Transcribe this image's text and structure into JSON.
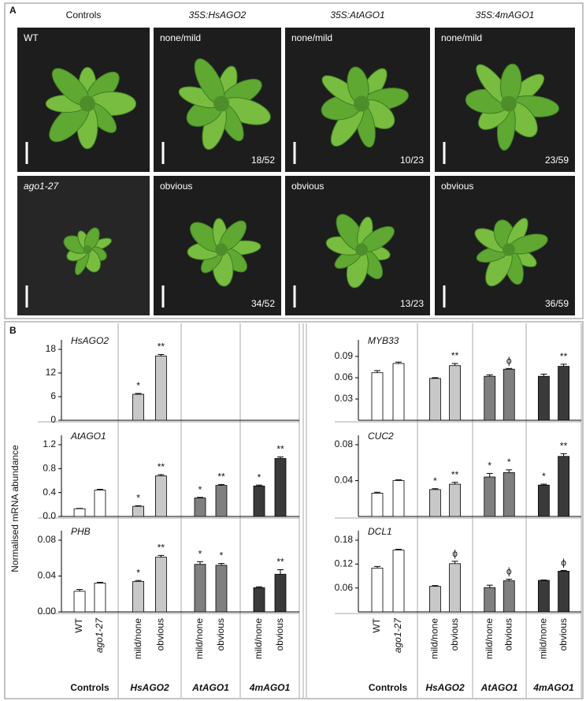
{
  "panel_a": {
    "label": "A",
    "columns": [
      "Controls",
      "35S:HsAGO2",
      "35S:AtAGO1",
      "35S:4mAGO1"
    ],
    "photos": [
      {
        "tag": "WT"
      },
      {
        "tag": "none/mild",
        "count": "18/52"
      },
      {
        "tag": "none/mild",
        "count": "10/23"
      },
      {
        "tag": "none/mild",
        "count": "23/59"
      },
      {
        "tag": "ago1-27"
      },
      {
        "tag": "obvious",
        "count": "34/52"
      },
      {
        "tag": "obvious",
        "count": "13/23"
      },
      {
        "tag": "obvious",
        "count": "36/59"
      }
    ]
  },
  "panel_b": {
    "label": "B",
    "y_label": "Normalised mRNA abundance"
  },
  "chart_data": [
    {
      "type": "bar",
      "title": "HsAGO2",
      "colors": [
        "#ffffff",
        "#ffffff",
        "#c8c8c8",
        "#c8c8c8",
        "#7f7f7f",
        "#7f7f7f",
        "#3a3a3a",
        "#3a3a3a"
      ],
      "values": [
        null,
        null,
        6.6,
        16.3,
        null,
        null,
        null,
        null
      ],
      "errors": [
        null,
        null,
        0.2,
        0.4,
        null,
        null,
        null,
        null
      ],
      "annotations": [
        null,
        null,
        "*",
        "**",
        null,
        null,
        null,
        null
      ],
      "ylim": [
        0,
        18
      ],
      "yticks": [
        0,
        6,
        12,
        18
      ]
    },
    {
      "type": "bar",
      "title": "AtAGO1",
      "colors": [
        "#ffffff",
        "#ffffff",
        "#c8c8c8",
        "#c8c8c8",
        "#7f7f7f",
        "#7f7f7f",
        "#3a3a3a",
        "#3a3a3a"
      ],
      "values": [
        0.13,
        0.44,
        0.17,
        0.68,
        0.31,
        0.52,
        0.51,
        0.97
      ],
      "errors": [
        0.005,
        0.015,
        0.01,
        0.02,
        0.01,
        0.015,
        0.015,
        0.025
      ],
      "annotations": [
        null,
        null,
        "*",
        "**",
        "*",
        "**",
        "*",
        "**"
      ],
      "ylim": [
        0,
        1.2
      ],
      "yticks": [
        {
          "value": 0,
          "label": "0.0"
        },
        0.4,
        0.8,
        1.2
      ]
    },
    {
      "type": "bar",
      "title": "PHB",
      "colors": [
        "#ffffff",
        "#ffffff",
        "#c8c8c8",
        "#c8c8c8",
        "#7f7f7f",
        "#7f7f7f",
        "#3a3a3a",
        "#3a3a3a"
      ],
      "values": [
        0.023,
        0.032,
        0.034,
        0.061,
        0.053,
        0.052,
        0.027,
        0.042
      ],
      "errors": [
        0.002,
        0.001,
        0.001,
        0.002,
        0.003,
        0.002,
        0.001,
        0.005
      ],
      "annotations": [
        null,
        null,
        "*",
        "**",
        "*",
        "*",
        null,
        "**"
      ],
      "ylim": [
        0,
        0.08
      ],
      "yticks": [
        {
          "value": 0,
          "label": "0.00"
        },
        0.04,
        0.08
      ],
      "categories": [
        "WT",
        "ago1-27",
        "mild/none",
        "obvious",
        "mild/none",
        "obvious",
        "mild/none",
        "obvious"
      ],
      "groups": [
        "Controls",
        "HsAGO2",
        "AtAGO1",
        "4mAGO1"
      ]
    },
    {
      "type": "bar",
      "title": "MYB33",
      "colors": [
        "#ffffff",
        "#ffffff",
        "#c8c8c8",
        "#c8c8c8",
        "#7f7f7f",
        "#7f7f7f",
        "#3a3a3a",
        "#3a3a3a"
      ],
      "values": [
        0.067,
        0.08,
        0.059,
        0.077,
        0.062,
        0.072,
        0.062,
        0.076
      ],
      "errors": [
        0.003,
        0.002,
        0.001,
        0.003,
        0.002,
        0.001,
        0.003,
        0.003
      ],
      "annotations": [
        null,
        null,
        null,
        "**",
        null,
        "ϕ",
        null,
        "**"
      ],
      "ylim": [
        0,
        0.1
      ],
      "yticks": [
        0.03,
        0.06,
        0.09
      ]
    },
    {
      "type": "bar",
      "title": "CUC2",
      "colors": [
        "#ffffff",
        "#ffffff",
        "#c8c8c8",
        "#c8c8c8",
        "#7f7f7f",
        "#7f7f7f",
        "#3a3a3a",
        "#3a3a3a"
      ],
      "values": [
        0.026,
        0.04,
        0.03,
        0.036,
        0.044,
        0.049,
        0.035,
        0.067
      ],
      "errors": [
        0.001,
        0.001,
        0.001,
        0.002,
        0.004,
        0.003,
        0.001,
        0.003
      ],
      "annotations": [
        null,
        null,
        "*",
        "**",
        "*",
        "*",
        "*",
        "**"
      ],
      "ylim": [
        0,
        0.08
      ],
      "yticks": [
        0.04,
        0.08
      ]
    },
    {
      "type": "bar",
      "title": "DCL1",
      "colors": [
        "#ffffff",
        "#ffffff",
        "#c8c8c8",
        "#c8c8c8",
        "#7f7f7f",
        "#7f7f7f",
        "#3a3a3a",
        "#3a3a3a"
      ],
      "values": [
        0.11,
        0.155,
        0.064,
        0.121,
        0.061,
        0.078,
        0.079,
        0.102
      ],
      "errors": [
        0.004,
        0.002,
        0.002,
        0.006,
        0.006,
        0.004,
        0.001,
        0.002
      ],
      "annotations": [
        null,
        null,
        null,
        "ϕ",
        null,
        "ϕ",
        null,
        "ϕ"
      ],
      "ylim": [
        0,
        0.18
      ],
      "yticks": [
        0.06,
        0.12,
        0.18
      ],
      "categories": [
        "WT",
        "ago1-27",
        "mild/none",
        "obvious",
        "mild/none",
        "obvious",
        "mild/none",
        "obvious"
      ],
      "groups": [
        "Controls",
        "HsAGO2",
        "AtAGO1",
        "4mAGO1"
      ]
    }
  ]
}
